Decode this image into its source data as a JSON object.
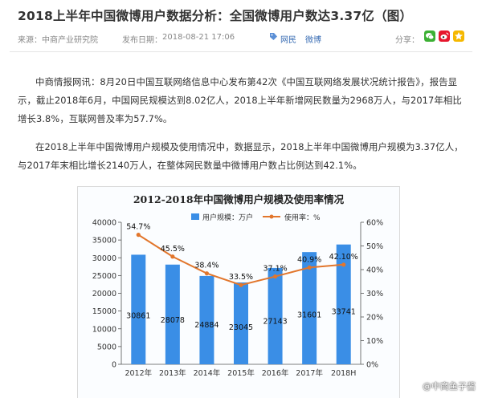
{
  "article": {
    "title": "2018上半年中国微博用户数据分析：全国微博用户数达3.37亿（图）",
    "source_label": "来源：",
    "source": "中商产业研究院",
    "date_label": "发布日期：",
    "date": "2018-08-21 17:06",
    "tags": [
      "网民",
      "微博"
    ],
    "share_label": "分享：",
    "paragraphs": [
      "中商情报网讯：8月20日中国互联网络信息中心发布第42次《中国互联网络发展状况统计报告》，报告显示，截止2018年6月，中国网民规模达到8.02亿人，2018上半年新增网民数量为2968万人，与2017年相比增长3.8%，互联网普及率为57.7%。",
      "在2018上半年中国微博用户规模及使用情况中，数据显示，2018上半年中国微博用户规模为3.37亿人，与2017年末相比增长2140万人，在整体网民数量中微博用户数占比例达到42.1%。"
    ]
  },
  "share_icons": [
    {
      "name": "wechat-share-icon",
      "color": "#3cb034"
    },
    {
      "name": "weibo-share-icon",
      "color": "#e6162d"
    },
    {
      "name": "qzone-share-icon",
      "color": "#f5b800"
    }
  ],
  "watermark": "@中商鱼子酱",
  "chart_data": {
    "type": "bar",
    "title": "2012-2018年中国微博用户规模及使用率情况",
    "categories": [
      "2012年",
      "2013年",
      "2014年",
      "2015年",
      "2016年",
      "2017年",
      "2018H"
    ],
    "series": [
      {
        "name": "用户规模：万户",
        "type": "bar",
        "color": "#3a8ee6",
        "values": [
          30861,
          28078,
          24884,
          23045,
          27143,
          31601,
          33741
        ],
        "labels": [
          "30861",
          "28078",
          "24884",
          "23045",
          "27143",
          "31601",
          "33741"
        ]
      },
      {
        "name": "使用率：%",
        "type": "line",
        "color": "#e2762c",
        "values": [
          54.7,
          45.5,
          38.4,
          33.5,
          37.1,
          40.9,
          42.1
        ],
        "labels": [
          "54.7%",
          "45.5%",
          "38.4%",
          "33.5%",
          "37.1%",
          "40.9%",
          "42.10%"
        ]
      }
    ],
    "y_left": {
      "min": 0,
      "max": 40000,
      "step": 5000,
      "ticks": [
        "0",
        "5000",
        "10000",
        "15000",
        "20000",
        "25000",
        "30000",
        "35000",
        "40000"
      ]
    },
    "y_right": {
      "min": 0,
      "max": 60,
      "step": 10,
      "ticks": [
        "0%",
        "10%",
        "20%",
        "30%",
        "40%",
        "50%",
        "60%"
      ]
    },
    "grid": false,
    "legend_position": "top-center"
  }
}
